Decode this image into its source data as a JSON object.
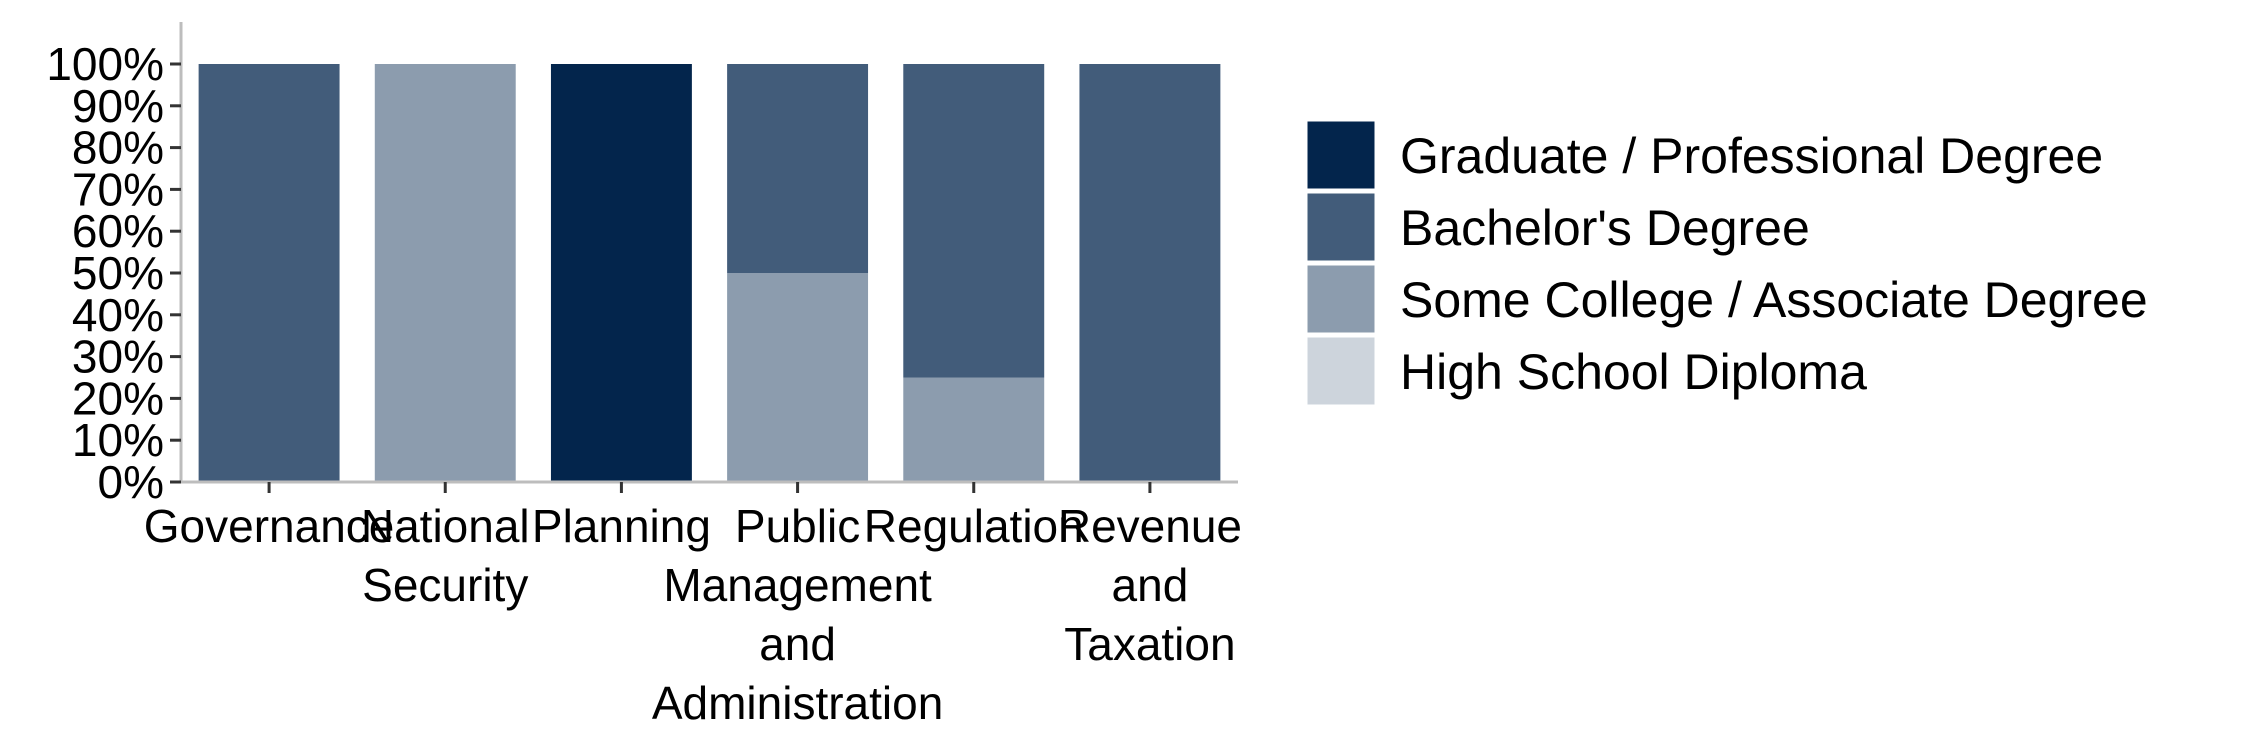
{
  "chart_data": {
    "type": "bar",
    "stacked": true,
    "normalized": true,
    "title": "",
    "xlabel": "",
    "ylabel": "",
    "ylim": [
      0,
      100
    ],
    "y_ticks": [
      "0%",
      "10%",
      "20%",
      "30%",
      "40%",
      "50%",
      "60%",
      "70%",
      "80%",
      "90%",
      "100%"
    ],
    "grid": false,
    "legend_position": "right",
    "categories": [
      [
        "Governance"
      ],
      [
        "National",
        "Security"
      ],
      [
        "Planning"
      ],
      [
        "Public",
        "Management",
        "and",
        "Administration"
      ],
      [
        "Regulation"
      ],
      [
        "Revenue",
        "and",
        "Taxation"
      ]
    ],
    "series": [
      {
        "name": "Graduate / Professional Degree",
        "color": "#03254c",
        "values": [
          0,
          0,
          100,
          0,
          0,
          0
        ]
      },
      {
        "name": "Bachelor's Degree",
        "color": "#425c7a",
        "values": [
          100,
          0,
          0,
          50,
          75,
          100
        ]
      },
      {
        "name": "Some College / Associate Degree",
        "color": "#8c9cae",
        "values": [
          0,
          100,
          0,
          50,
          25,
          0
        ]
      },
      {
        "name": "High School Diploma",
        "color": "#cdd4dc",
        "values": [
          0,
          0,
          0,
          0,
          0,
          0
        ]
      }
    ]
  }
}
